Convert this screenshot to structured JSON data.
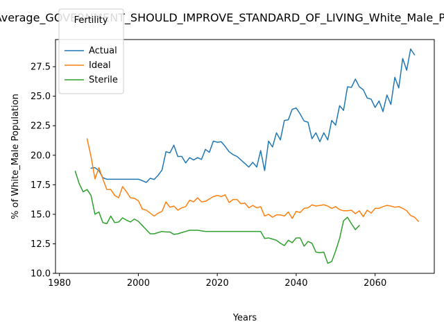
{
  "chart_data": {
    "type": "line",
    "title": "Average_GOVERNMENT_SHOULD_IMPROVE_STANDARD_OF_LIVING_White_Male_Population",
    "xlabel": "Years",
    "ylabel": "% of White_Male Population",
    "xlim": [
      1979,
      2075
    ],
    "ylim": [
      10.0,
      29.8
    ],
    "xticks": [
      1980,
      2000,
      2020,
      2040,
      2060
    ],
    "yticks": [
      10.0,
      12.5,
      15.0,
      17.5,
      20.0,
      22.5,
      25.0,
      27.5
    ],
    "grid": false,
    "legend": {
      "title": "Fertility",
      "position": "upper-left"
    },
    "series": [
      {
        "name": "Actual",
        "color": "#1f77b4",
        "points": [
          [
            1988,
            18.9
          ],
          [
            1989,
            18.95
          ],
          [
            1990,
            18.7
          ],
          [
            1991,
            18.1
          ],
          [
            1992,
            17.97
          ],
          [
            1993,
            17.97
          ],
          [
            1994,
            17.97
          ],
          [
            1995,
            17.97
          ],
          [
            1996,
            17.97
          ],
          [
            1997,
            17.97
          ],
          [
            1998,
            17.97
          ],
          [
            1999,
            17.97
          ],
          [
            2000,
            17.97
          ],
          [
            2001,
            17.85
          ],
          [
            2002,
            17.7
          ],
          [
            2003,
            18.05
          ],
          [
            2004,
            17.95
          ],
          [
            2005,
            18.3
          ],
          [
            2006,
            18.75
          ],
          [
            2007,
            20.3
          ],
          [
            2008,
            20.2
          ],
          [
            2009,
            20.85
          ],
          [
            2010,
            19.9
          ],
          [
            2011,
            19.9
          ],
          [
            2012,
            19.35
          ],
          [
            2013,
            19.8
          ],
          [
            2014,
            19.6
          ],
          [
            2015,
            19.8
          ],
          [
            2016,
            19.65
          ],
          [
            2017,
            20.5
          ],
          [
            2018,
            20.25
          ],
          [
            2019,
            21.2
          ],
          [
            2020,
            21.1
          ],
          [
            2021,
            21.15
          ],
          [
            2022,
            20.75
          ],
          [
            2023,
            20.3
          ],
          [
            2024,
            20.05
          ],
          [
            2025,
            19.9
          ],
          [
            2026,
            19.6
          ],
          [
            2027,
            19.3
          ],
          [
            2028,
            19.0
          ],
          [
            2029,
            19.4
          ],
          [
            2030,
            19.0
          ],
          [
            2031,
            20.4
          ],
          [
            2032,
            18.7
          ],
          [
            2033,
            21.2
          ],
          [
            2034,
            20.7
          ],
          [
            2035,
            21.9
          ],
          [
            2036,
            21.3
          ],
          [
            2037,
            22.95
          ],
          [
            2038,
            23.0
          ],
          [
            2039,
            23.9
          ],
          [
            2040,
            24.0
          ],
          [
            2041,
            23.5
          ],
          [
            2042,
            22.9
          ],
          [
            2043,
            22.8
          ],
          [
            2044,
            21.4
          ],
          [
            2045,
            21.9
          ],
          [
            2046,
            21.15
          ],
          [
            2047,
            21.9
          ],
          [
            2048,
            21.3
          ],
          [
            2049,
            22.95
          ],
          [
            2050,
            22.55
          ],
          [
            2051,
            24.2
          ],
          [
            2052,
            23.8
          ],
          [
            2053,
            25.8
          ],
          [
            2054,
            25.75
          ],
          [
            2055,
            26.45
          ],
          [
            2056,
            25.8
          ],
          [
            2057,
            25.55
          ],
          [
            2058,
            24.85
          ],
          [
            2059,
            24.75
          ],
          [
            2060,
            24.05
          ],
          [
            2061,
            24.6
          ],
          [
            2062,
            23.7
          ],
          [
            2063,
            25.1
          ],
          [
            2064,
            24.3
          ],
          [
            2065,
            26.6
          ],
          [
            2066,
            25.7
          ],
          [
            2067,
            28.2
          ],
          [
            2068,
            27.2
          ],
          [
            2069,
            29.0
          ],
          [
            2070,
            28.5
          ]
        ]
      },
      {
        "name": "Ideal",
        "color": "#ff7f0e",
        "points": [
          [
            1987,
            21.4
          ],
          [
            1988,
            19.9
          ],
          [
            1989,
            18.0
          ],
          [
            1990,
            18.95
          ],
          [
            1991,
            18.0
          ],
          [
            1992,
            17.1
          ],
          [
            1993,
            17.1
          ],
          [
            1994,
            16.6
          ],
          [
            1995,
            16.4
          ],
          [
            1996,
            17.35
          ],
          [
            1997,
            16.9
          ],
          [
            1998,
            16.4
          ],
          [
            1999,
            16.35
          ],
          [
            2000,
            16.15
          ],
          [
            2001,
            15.45
          ],
          [
            2002,
            15.35
          ],
          [
            2003,
            15.1
          ],
          [
            2004,
            14.85
          ],
          [
            2005,
            15.1
          ],
          [
            2006,
            15.25
          ],
          [
            2007,
            16.05
          ],
          [
            2008,
            15.6
          ],
          [
            2009,
            15.7
          ],
          [
            2010,
            15.35
          ],
          [
            2011,
            15.55
          ],
          [
            2012,
            15.65
          ],
          [
            2013,
            16.2
          ],
          [
            2014,
            16.05
          ],
          [
            2015,
            16.4
          ],
          [
            2016,
            16.05
          ],
          [
            2017,
            16.1
          ],
          [
            2018,
            16.3
          ],
          [
            2019,
            16.5
          ],
          [
            2020,
            16.6
          ],
          [
            2021,
            16.5
          ],
          [
            2022,
            16.65
          ],
          [
            2023,
            16.0
          ],
          [
            2024,
            16.25
          ],
          [
            2025,
            16.25
          ],
          [
            2026,
            15.9
          ],
          [
            2027,
            15.95
          ],
          [
            2028,
            15.55
          ],
          [
            2029,
            15.75
          ],
          [
            2030,
            15.55
          ],
          [
            2031,
            15.65
          ],
          [
            2032,
            14.85
          ],
          [
            2033,
            15.0
          ],
          [
            2034,
            14.75
          ],
          [
            2035,
            14.95
          ],
          [
            2036,
            14.95
          ],
          [
            2037,
            14.85
          ],
          [
            2038,
            15.2
          ],
          [
            2039,
            14.65
          ],
          [
            2040,
            15.25
          ],
          [
            2041,
            15.15
          ],
          [
            2042,
            15.5
          ],
          [
            2043,
            15.55
          ],
          [
            2044,
            15.8
          ],
          [
            2045,
            15.7
          ],
          [
            2046,
            15.75
          ],
          [
            2047,
            15.8
          ],
          [
            2048,
            15.7
          ],
          [
            2049,
            15.5
          ],
          [
            2050,
            15.65
          ],
          [
            2051,
            15.4
          ],
          [
            2052,
            15.3
          ],
          [
            2053,
            15.3
          ],
          [
            2054,
            15.35
          ],
          [
            2055,
            15.05
          ],
          [
            2056,
            15.3
          ],
          [
            2057,
            14.8
          ],
          [
            2058,
            15.35
          ],
          [
            2059,
            15.1
          ],
          [
            2060,
            15.5
          ],
          [
            2061,
            15.5
          ],
          [
            2062,
            15.65
          ],
          [
            2063,
            15.75
          ],
          [
            2064,
            15.7
          ],
          [
            2065,
            15.6
          ],
          [
            2066,
            15.65
          ],
          [
            2067,
            15.5
          ],
          [
            2068,
            15.3
          ],
          [
            2069,
            14.9
          ],
          [
            2070,
            14.75
          ],
          [
            2071,
            14.4
          ]
        ]
      },
      {
        "name": "Sterile",
        "color": "#2ca02c",
        "points": [
          [
            1984,
            18.65
          ],
          [
            1985,
            17.6
          ],
          [
            1986,
            16.9
          ],
          [
            1987,
            17.1
          ],
          [
            1988,
            16.6
          ],
          [
            1989,
            15.0
          ],
          [
            1990,
            15.2
          ],
          [
            1991,
            14.3
          ],
          [
            1992,
            14.2
          ],
          [
            1993,
            14.85
          ],
          [
            1994,
            14.3
          ],
          [
            1995,
            14.35
          ],
          [
            1996,
            14.7
          ],
          [
            1997,
            14.5
          ],
          [
            1998,
            14.35
          ],
          [
            1999,
            14.6
          ],
          [
            2000,
            14.4
          ],
          [
            2001,
            14.05
          ],
          [
            2002,
            13.7
          ],
          [
            2003,
            13.35
          ],
          [
            2004,
            13.35
          ],
          [
            2005,
            13.45
          ],
          [
            2006,
            13.55
          ],
          [
            2007,
            13.5
          ],
          [
            2008,
            13.5
          ],
          [
            2009,
            13.3
          ],
          [
            2010,
            13.35
          ],
          [
            2011,
            13.45
          ],
          [
            2012,
            13.55
          ],
          [
            2013,
            13.65
          ],
          [
            2014,
            13.65
          ],
          [
            2015,
            13.65
          ],
          [
            2016,
            13.6
          ],
          [
            2017,
            13.55
          ],
          [
            2018,
            13.55
          ],
          [
            2019,
            13.55
          ],
          [
            2020,
            13.55
          ],
          [
            2021,
            13.55
          ],
          [
            2022,
            13.55
          ],
          [
            2023,
            13.55
          ],
          [
            2024,
            13.55
          ],
          [
            2025,
            13.55
          ],
          [
            2026,
            13.55
          ],
          [
            2027,
            13.55
          ],
          [
            2028,
            13.55
          ],
          [
            2029,
            13.55
          ],
          [
            2030,
            13.55
          ],
          [
            2031,
            13.55
          ],
          [
            2032,
            12.95
          ],
          [
            2033,
            13.0
          ],
          [
            2034,
            12.9
          ],
          [
            2035,
            12.8
          ],
          [
            2036,
            12.55
          ],
          [
            2037,
            12.35
          ],
          [
            2038,
            12.8
          ],
          [
            2039,
            12.6
          ],
          [
            2040,
            13.0
          ],
          [
            2041,
            13.0
          ],
          [
            2042,
            12.3
          ],
          [
            2043,
            12.7
          ],
          [
            2044,
            12.55
          ],
          [
            2045,
            11.8
          ],
          [
            2046,
            11.75
          ],
          [
            2047,
            11.8
          ],
          [
            2048,
            10.85
          ],
          [
            2049,
            11.0
          ],
          [
            2050,
            11.9
          ],
          [
            2051,
            12.95
          ],
          [
            2052,
            14.45
          ],
          [
            2053,
            14.75
          ],
          [
            2054,
            14.2
          ],
          [
            2055,
            13.7
          ],
          [
            2056,
            14.05
          ]
        ]
      }
    ]
  }
}
